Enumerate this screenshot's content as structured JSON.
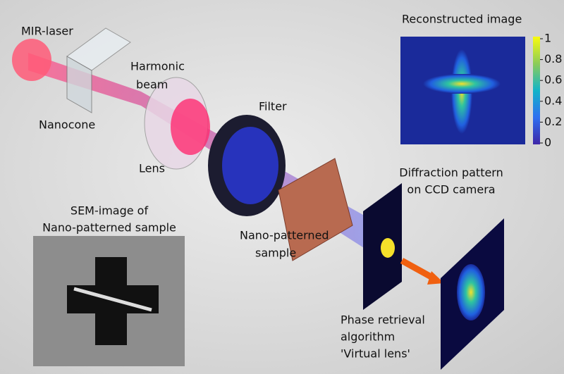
{
  "labels": {
    "mir_laser": "MIR-laser",
    "harmonic_beam": [
      "Harmonic",
      "beam"
    ],
    "nanocone": "Nanocone",
    "filter": "Filter",
    "lens": "Lens",
    "reconstructed_image": "Reconstructed image",
    "sem_image": [
      "SEM-image of",
      "Nano-patterned sample"
    ],
    "sample": [
      "Nano-patterned",
      "sample"
    ],
    "diffraction": [
      "Diffraction pattern",
      "on CCD camera"
    ],
    "phase_retrieval": [
      "Phase retrieval",
      "algorithm",
      "'Virtual lens'"
    ]
  },
  "colorbar": {
    "range": [
      0,
      1
    ],
    "ticks": [
      1,
      0.8,
      0.6,
      0.4,
      0.2,
      0
    ]
  }
}
